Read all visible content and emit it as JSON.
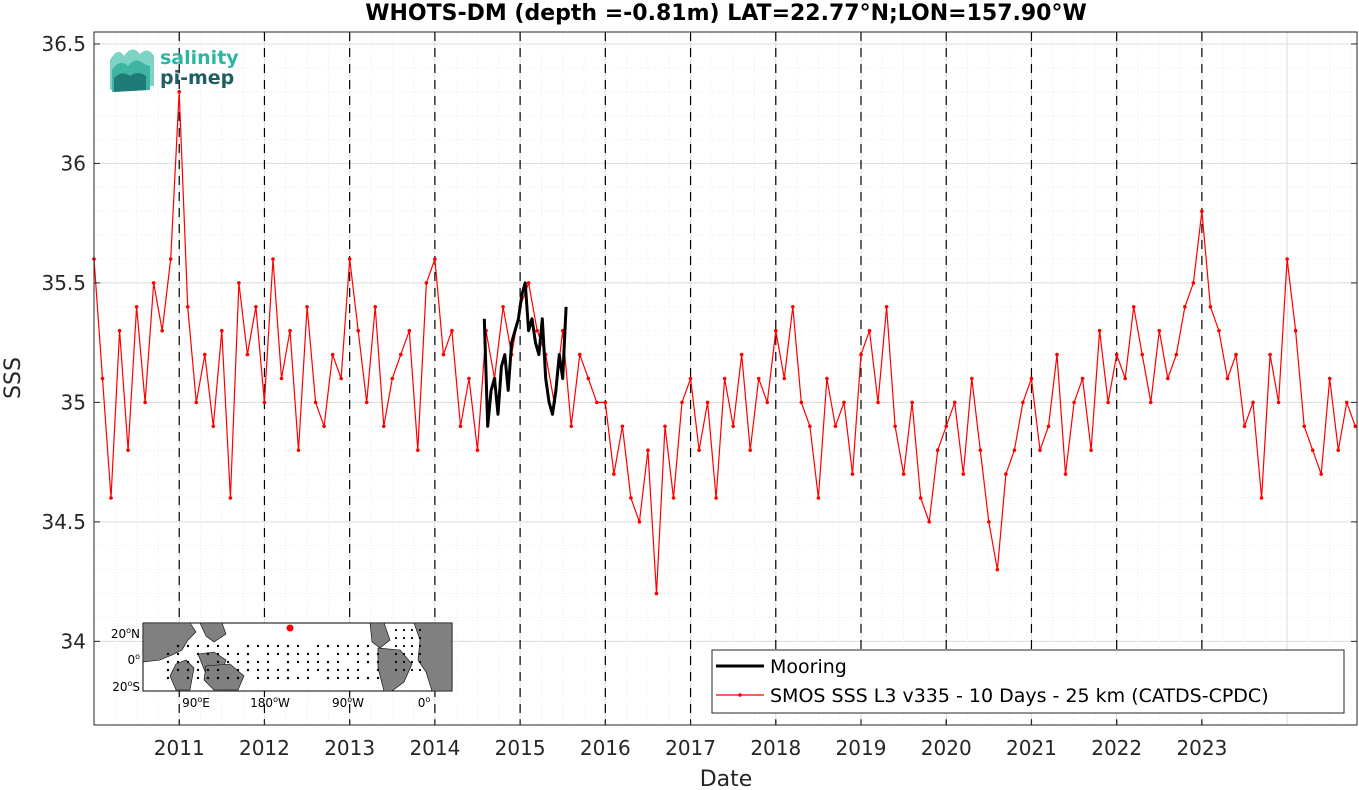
{
  "chart_data": {
    "type": "line",
    "title": "WHOTS-DM (depth =-0.81m) LAT=22.77°N;LON=157.90°W",
    "xlabel": "Date",
    "ylabel": "SSS",
    "xlim": [
      2010.0,
      2024.82
    ],
    "ylim": [
      33.65,
      36.55
    ],
    "yticks": [
      34,
      34.5,
      35,
      35.5,
      36,
      36.5
    ],
    "xticks": [
      2011,
      2012,
      2013,
      2014,
      2015,
      2016,
      2017,
      2018,
      2019,
      2020,
      2021,
      2022,
      2023
    ],
    "grid": true,
    "vertical_dashed_lines": [
      2011,
      2012,
      2013,
      2014,
      2015,
      2016,
      2017,
      2018,
      2019,
      2020,
      2021,
      2022,
      2023
    ],
    "legend_position": "bottom-right",
    "series": [
      {
        "name": "Mooring",
        "color": "#000000",
        "style": "line",
        "x": [
          2014.58,
          2014.62,
          2014.66,
          2014.7,
          2014.74,
          2014.78,
          2014.82,
          2014.86,
          2014.9,
          2014.94,
          2014.98,
          2015.02,
          2015.06,
          2015.1,
          2015.14,
          2015.18,
          2015.22,
          2015.26,
          2015.3,
          2015.34,
          2015.38,
          2015.42,
          2015.46,
          2015.5,
          2015.54
        ],
        "y": [
          35.35,
          34.9,
          35.05,
          35.1,
          34.95,
          35.15,
          35.2,
          35.05,
          35.25,
          35.3,
          35.35,
          35.45,
          35.5,
          35.3,
          35.35,
          35.25,
          35.2,
          35.35,
          35.1,
          35.0,
          34.95,
          35.05,
          35.2,
          35.1,
          35.4
        ]
      },
      {
        "name": "SMOS SSS L3 v335 - 10 Days - 25 km (CATDS-CPDC)",
        "color": "#ff0000",
        "style": "line-dot",
        "x": [
          2010.0,
          2010.1,
          2010.2,
          2010.3,
          2010.4,
          2010.5,
          2010.6,
          2010.7,
          2010.8,
          2010.9,
          2011.0,
          2011.1,
          2011.2,
          2011.3,
          2011.4,
          2011.5,
          2011.6,
          2011.7,
          2011.8,
          2011.9,
          2012.0,
          2012.1,
          2012.2,
          2012.3,
          2012.4,
          2012.5,
          2012.6,
          2012.7,
          2012.8,
          2012.9,
          2013.0,
          2013.1,
          2013.2,
          2013.3,
          2013.4,
          2013.5,
          2013.6,
          2013.7,
          2013.8,
          2013.9,
          2014.0,
          2014.1,
          2014.2,
          2014.3,
          2014.4,
          2014.5,
          2014.6,
          2014.7,
          2014.8,
          2014.9,
          2015.0,
          2015.1,
          2015.2,
          2015.3,
          2015.4,
          2015.5,
          2015.6,
          2015.7,
          2015.8,
          2015.9,
          2016.0,
          2016.1,
          2016.2,
          2016.3,
          2016.4,
          2016.5,
          2016.6,
          2016.7,
          2016.8,
          2016.9,
          2017.0,
          2017.1,
          2017.2,
          2017.3,
          2017.4,
          2017.5,
          2017.6,
          2017.7,
          2017.8,
          2017.9,
          2018.0,
          2018.1,
          2018.2,
          2018.3,
          2018.4,
          2018.5,
          2018.6,
          2018.7,
          2018.8,
          2018.9,
          2019.0,
          2019.1,
          2019.2,
          2019.3,
          2019.4,
          2019.5,
          2019.6,
          2019.7,
          2019.8,
          2019.9,
          2020.0,
          2020.1,
          2020.2,
          2020.3,
          2020.4,
          2020.5,
          2020.6,
          2020.7,
          2020.8,
          2020.9,
          2021.0,
          2021.1,
          2021.2,
          2021.3,
          2021.4,
          2021.5,
          2021.6,
          2021.7,
          2021.8,
          2021.9,
          2022.0,
          2022.1,
          2022.2,
          2022.3,
          2022.4,
          2022.5,
          2022.6,
          2022.7,
          2022.8,
          2022.9,
          2023.0,
          2023.1,
          2023.2,
          2023.3,
          2023.4,
          2023.5,
          2023.6,
          2023.7,
          2023.8,
          2023.9,
          2024.0,
          2024.1,
          2024.2,
          2024.3,
          2024.4,
          2024.5,
          2024.6,
          2024.7,
          2024.8
        ],
        "y": [
          35.6,
          35.1,
          34.6,
          35.3,
          34.8,
          35.4,
          35.0,
          35.5,
          35.3,
          35.6,
          36.3,
          35.4,
          35.0,
          35.2,
          34.9,
          35.3,
          34.6,
          35.5,
          35.2,
          35.4,
          35.0,
          35.6,
          35.1,
          35.3,
          34.8,
          35.4,
          35.0,
          34.9,
          35.2,
          35.1,
          35.6,
          35.3,
          35.0,
          35.4,
          34.9,
          35.1,
          35.2,
          35.3,
          34.8,
          35.5,
          35.6,
          35.2,
          35.3,
          34.9,
          35.1,
          34.8,
          35.3,
          35.1,
          35.4,
          35.2,
          35.4,
          35.5,
          35.3,
          35.2,
          35.0,
          35.3,
          34.9,
          35.2,
          35.1,
          35.0,
          35.0,
          34.7,
          34.9,
          34.6,
          34.5,
          34.8,
          34.2,
          34.9,
          34.6,
          35.0,
          35.1,
          34.8,
          35.0,
          34.6,
          35.1,
          34.9,
          35.2,
          34.8,
          35.1,
          35.0,
          35.3,
          35.1,
          35.4,
          35.0,
          34.9,
          34.6,
          35.1,
          34.9,
          35.0,
          34.7,
          35.2,
          35.3,
          35.0,
          35.4,
          34.9,
          34.7,
          35.0,
          34.6,
          34.5,
          34.8,
          34.9,
          35.0,
          34.7,
          35.1,
          34.8,
          34.5,
          34.3,
          34.7,
          34.8,
          35.0,
          35.1,
          34.8,
          34.9,
          35.2,
          34.7,
          35.0,
          35.1,
          34.8,
          35.3,
          35.0,
          35.2,
          35.1,
          35.4,
          35.2,
          35.0,
          35.3,
          35.1,
          35.2,
          35.4,
          35.5,
          35.8,
          35.4,
          35.3,
          35.1,
          35.2,
          34.9,
          35.0,
          34.6,
          35.2,
          35.0,
          35.6,
          35.3,
          34.9,
          34.8,
          34.7,
          35.1,
          34.8,
          35.0,
          34.9
        ]
      }
    ]
  },
  "logo": {
    "line1": "salinity",
    "line2": "pi-mep"
  },
  "inset_map": {
    "xticks": [
      {
        "base": "90",
        "sup": "o",
        "suffix": "E"
      },
      {
        "base": "180",
        "sup": "o",
        "suffix": "W"
      },
      {
        "base": "90",
        "sup": "o",
        "suffix": "W"
      },
      {
        "base": "0",
        "sup": "o",
        "suffix": ""
      }
    ],
    "yticks": [
      {
        "base": "20",
        "sup": "o",
        "suffix": "N"
      },
      {
        "base": "0",
        "sup": "o",
        "suffix": ""
      },
      {
        "base": "20",
        "sup": "o",
        "suffix": "S"
      }
    ],
    "land_color": "#808080",
    "ocean_color": "#ffffff",
    "site_color": "#ff0000"
  }
}
